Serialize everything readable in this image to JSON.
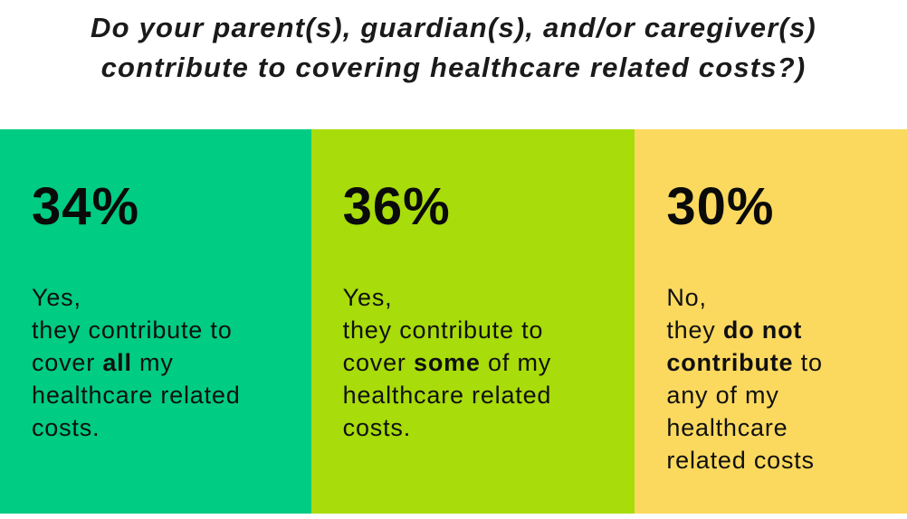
{
  "title": {
    "line1": "Do your parent(s), guardian(s), and/or caregiver(s)",
    "line2": "contribute to covering healthcare related costs?)"
  },
  "chart_data": {
    "type": "bar",
    "title": "Do your parent(s), guardian(s), and/or caregiver(s) contribute to covering healthcare related costs?)",
    "categories": [
      "Yes, they contribute to cover all my healthcare related costs.",
      "Yes, they contribute to cover some of my healthcare related costs.",
      "No, they do not contribute to any of my healthcare related costs"
    ],
    "values": [
      34,
      36,
      30
    ],
    "unit": "%",
    "orientation": "horizontal-proportional-panels",
    "colors": [
      "#00cc84",
      "#a8dc0a",
      "#fbd95e"
    ],
    "xlabel": "",
    "ylabel": "",
    "legend": "none",
    "grid": false
  },
  "panels": [
    {
      "id": "contribute-all",
      "percent": "34%",
      "value": 34,
      "color": "#00cc84",
      "width_pct": 34.3,
      "lines": [
        [
          {
            "t": "Yes,"
          }
        ],
        [
          {
            "t": "they contribute to"
          }
        ],
        [
          {
            "t": "cover "
          },
          {
            "t": "all",
            "b": true
          },
          {
            "t": " my"
          }
        ],
        [
          {
            "t": "healthcare related"
          }
        ],
        [
          {
            "t": "costs."
          }
        ]
      ]
    },
    {
      "id": "contribute-some",
      "percent": "36%",
      "value": 36,
      "color": "#a8dc0a",
      "width_pct": 35.7,
      "lines": [
        [
          {
            "t": "Yes,"
          }
        ],
        [
          {
            "t": "they contribute to"
          }
        ],
        [
          {
            "t": "cover "
          },
          {
            "t": "some",
            "b": true
          },
          {
            "t": " of my"
          }
        ],
        [
          {
            "t": "healthcare related"
          }
        ],
        [
          {
            "t": "costs."
          }
        ]
      ]
    },
    {
      "id": "contribute-none",
      "percent": "30%",
      "value": 30,
      "color": "#fbd95e",
      "width_pct": 30.0,
      "lines": [
        [
          {
            "t": "No,"
          }
        ],
        [
          {
            "t": "they "
          },
          {
            "t": "do not",
            "b": true
          }
        ],
        [
          {
            "t": "contribute",
            "b": true
          },
          {
            "t": " to"
          }
        ],
        [
          {
            "t": "any of my"
          }
        ],
        [
          {
            "t": "healthcare"
          }
        ],
        [
          {
            "t": "related costs"
          }
        ]
      ]
    }
  ],
  "colors": {
    "background": "#ffffff",
    "title_text": "#1a1a1a",
    "panel_text": "#101010"
  }
}
